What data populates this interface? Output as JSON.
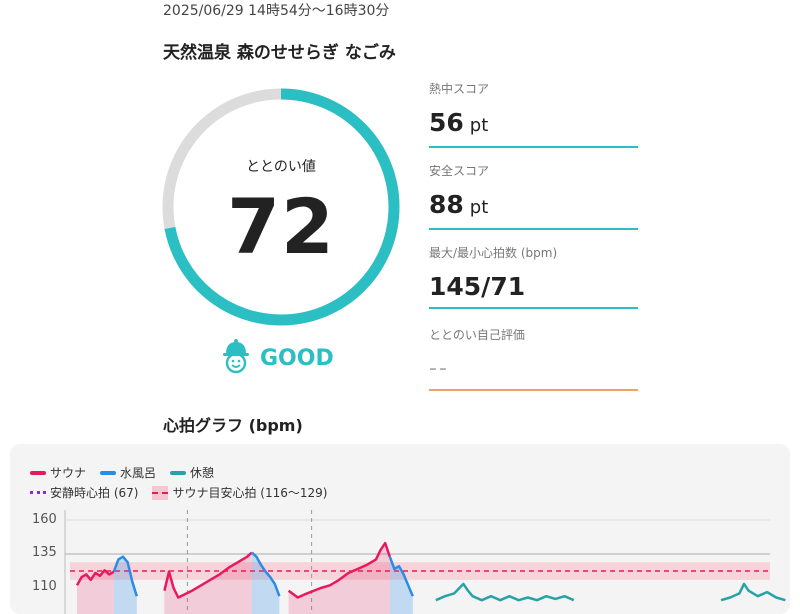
{
  "session": {
    "datetime": "2025/06/29 14時54分〜16時30分",
    "facility": "天然温泉 森のせせらぎ なごみ"
  },
  "score": {
    "label": "ととのい値",
    "value": "72",
    "fraction": 0.72,
    "rating": "GOOD",
    "rating_icon": "sauna-hat-face-icon"
  },
  "metrics": [
    {
      "label": "熱中スコア",
      "value": "56",
      "unit": "pt"
    },
    {
      "label": "安全スコア",
      "value": "88",
      "unit": "pt"
    },
    {
      "label": "最大/最小心拍数 (bpm)",
      "value": "145/71",
      "unit": ""
    },
    {
      "label": "ととのい自己評価",
      "value": "--",
      "unit": ""
    }
  ],
  "graph": {
    "title": "心拍グラフ (bpm)",
    "legend": {
      "sauna": "サウナ",
      "cold": "水風呂",
      "rest": "休憩",
      "resting": "安静時心拍 (67)",
      "target": "サウナ目安心拍 (116〜129)"
    },
    "yticks": [
      "160",
      "135",
      "110"
    ]
  },
  "colors": {
    "accent": "#2bbfc4",
    "track": "#dcdcdc",
    "sauna": "#e8195c",
    "cold": "#2b8ce6",
    "rest": "#27a3a8",
    "resting": "#8a2be2",
    "target_band": "#f6c6cf",
    "self_eval_line": "#f0a35e"
  },
  "chart_data": {
    "type": "line",
    "ylabel": "bpm",
    "ylim": [
      100,
      160
    ],
    "yticks": [
      160,
      135,
      110
    ],
    "resting_hr": 67,
    "target_band": [
      116,
      129
    ],
    "series": [
      {
        "name": "サウナ",
        "segments": [
          [
            [
              0,
              112
            ],
            [
              1,
              118
            ],
            [
              2,
              120
            ],
            [
              3,
              116
            ],
            [
              4,
              121
            ],
            [
              5,
              119
            ],
            [
              6,
              123
            ],
            [
              7,
              120
            ],
            [
              8,
              122
            ]
          ],
          [
            [
              19,
              108
            ],
            [
              20,
              122
            ],
            [
              21,
              110
            ],
            [
              22,
              103
            ],
            [
              25,
              108
            ],
            [
              27,
              112
            ],
            [
              29,
              116
            ],
            [
              31,
              120
            ],
            [
              33,
              125
            ],
            [
              35,
              129
            ],
            [
              37,
              133
            ],
            [
              38,
              136
            ]
          ],
          [
            [
              46,
              108
            ],
            [
              48,
              103
            ],
            [
              50,
              106
            ],
            [
              53,
              110
            ],
            [
              55,
              112
            ],
            [
              57,
              116
            ],
            [
              59,
              121
            ],
            [
              61,
              124
            ],
            [
              63,
              127
            ],
            [
              65,
              131
            ],
            [
              66,
              138
            ],
            [
              67,
              143
            ],
            [
              68,
              133
            ]
          ]
        ]
      },
      {
        "name": "水風呂",
        "segments": [
          [
            [
              8,
              122
            ],
            [
              9,
              131
            ],
            [
              10,
              133
            ],
            [
              11,
              129
            ],
            [
              12,
              115
            ],
            [
              13,
              104
            ]
          ],
          [
            [
              38,
              136
            ],
            [
              39,
              133
            ],
            [
              40,
              127
            ],
            [
              41,
              122
            ],
            [
              42,
              118
            ],
            [
              43,
              113
            ],
            [
              44,
              104
            ]
          ],
          [
            [
              68,
              133
            ],
            [
              69,
              124
            ],
            [
              70,
              126
            ],
            [
              71,
              120
            ],
            [
              72,
              112
            ],
            [
              73,
              104
            ]
          ]
        ]
      },
      {
        "name": "休憩",
        "segments": [
          [
            [
              78,
              101
            ],
            [
              80,
              104
            ],
            [
              82,
              106
            ],
            [
              84,
              113
            ],
            [
              85,
              108
            ],
            [
              86,
              104
            ],
            [
              88,
              101
            ],
            [
              90,
              104
            ],
            [
              92,
              101
            ],
            [
              94,
              104
            ],
            [
              96,
              101
            ],
            [
              98,
              103
            ],
            [
              100,
              101
            ],
            [
              102,
              104
            ],
            [
              104,
              102
            ],
            [
              106,
              104
            ],
            [
              108,
              101
            ]
          ],
          [
            [
              140,
              101
            ],
            [
              142,
              103
            ],
            [
              144,
              106
            ],
            [
              145,
              113
            ],
            [
              146,
              108
            ],
            [
              148,
              104
            ],
            [
              150,
              107
            ],
            [
              152,
              103
            ],
            [
              154,
              101
            ]
          ]
        ]
      }
    ],
    "phase_markers": [
      24,
      51
    ]
  }
}
